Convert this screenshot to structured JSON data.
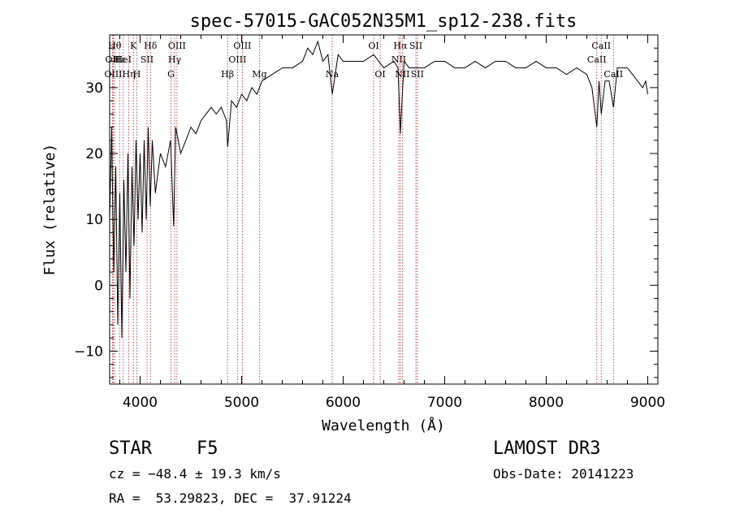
{
  "chart_data": {
    "type": "line",
    "title": "spec-57015-GAC052N35M1_sp12-238.fits",
    "xlabel": "Wavelength (Å)",
    "ylabel": "Flux (relative)",
    "xlim": [
      3700,
      9100
    ],
    "ylim": [
      -15,
      38
    ],
    "xticks": [
      4000,
      5000,
      6000,
      7000,
      8000,
      9000
    ],
    "yticks": [
      -10,
      0,
      10,
      20,
      30
    ],
    "series": [
      {
        "name": "flux",
        "x": [
          3700,
          3720,
          3740,
          3760,
          3780,
          3800,
          3820,
          3840,
          3860,
          3880,
          3900,
          3920,
          3940,
          3960,
          3980,
          4000,
          4020,
          4040,
          4060,
          4080,
          4100,
          4120,
          4150,
          4200,
          4250,
          4300,
          4330,
          4350,
          4400,
          4450,
          4500,
          4550,
          4600,
          4650,
          4700,
          4750,
          4800,
          4850,
          4862,
          4900,
          4950,
          5000,
          5050,
          5100,
          5150,
          5200,
          5300,
          5400,
          5500,
          5600,
          5650,
          5700,
          5750,
          5800,
          5850,
          5893,
          5950,
          6000,
          6100,
          6200,
          6300,
          6400,
          6500,
          6540,
          6563,
          6600,
          6650,
          6700,
          6800,
          6900,
          7000,
          7100,
          7200,
          7300,
          7400,
          7500,
          7600,
          7700,
          7800,
          7900,
          8000,
          8100,
          8200,
          8300,
          8400,
          8450,
          8498,
          8520,
          8542,
          8580,
          8620,
          8662,
          8700,
          8750,
          8800,
          8850,
          8900,
          8950,
          8980,
          9000
        ],
        "y": [
          10,
          24,
          2,
          18,
          -6,
          14,
          -8,
          16,
          2,
          20,
          -2,
          18,
          6,
          22,
          10,
          20,
          8,
          22,
          10,
          24,
          12,
          22,
          14,
          20,
          18,
          22,
          9,
          24,
          20,
          22,
          24,
          23,
          25,
          26,
          27,
          26,
          27,
          25,
          21,
          28,
          27,
          29,
          28,
          30,
          29,
          31,
          32,
          33,
          33,
          34,
          36,
          35,
          37,
          34,
          35,
          29,
          35,
          34,
          34,
          34,
          35,
          33,
          34,
          33,
          23,
          34,
          33,
          33,
          33,
          34,
          34,
          33,
          33,
          34,
          33,
          34,
          34,
          33,
          33,
          34,
          33,
          33,
          32,
          33,
          32,
          30,
          24,
          31,
          26,
          31,
          31,
          27,
          33,
          33,
          33,
          32,
          31,
          30,
          31,
          29
        ]
      }
    ],
    "lines": [
      {
        "wl": 3750,
        "label": "Hθ",
        "row": 1
      },
      {
        "wl": 3727,
        "label": "OII",
        "row": 2
      },
      {
        "wl": 3736,
        "label": "OIII",
        "row": 3
      },
      {
        "wl": 3798,
        "label": "Hε",
        "row": 2
      },
      {
        "wl": 3834,
        "label": "HeI",
        "row": 2
      },
      {
        "wl": 3889,
        "label": "Hη",
        "row": 3
      },
      {
        "wl": 3934,
        "label": "K",
        "row": 1
      },
      {
        "wl": 3968,
        "label": "H",
        "row": 3
      },
      {
        "wl": 4068,
        "label": "SII",
        "row": 2
      },
      {
        "wl": 4102,
        "label": "Hδ",
        "row": 1
      },
      {
        "wl": 4304,
        "label": "G",
        "row": 3
      },
      {
        "wl": 4340,
        "label": "Hγ",
        "row": 2
      },
      {
        "wl": 4363,
        "label": "OIII",
        "row": 1
      },
      {
        "wl": 4861,
        "label": "Hβ",
        "row": 3
      },
      {
        "wl": 4959,
        "label": "OIII",
        "row": 2
      },
      {
        "wl": 5007,
        "label": "OIII",
        "row": 1
      },
      {
        "wl": 5175,
        "label": "Mg",
        "row": 3
      },
      {
        "wl": 5892,
        "label": "Na",
        "row": 3
      },
      {
        "wl": 6300,
        "label": "OI",
        "row": 1
      },
      {
        "wl": 6364,
        "label": "OI",
        "row": 3
      },
      {
        "wl": 6548,
        "label": "NII",
        "row": 2
      },
      {
        "wl": 6563,
        "label": "Hα",
        "row": 1
      },
      {
        "wl": 6583,
        "label": "NII",
        "row": 3
      },
      {
        "wl": 6716,
        "label": "SII",
        "row": 1
      },
      {
        "wl": 6731,
        "label": "SII",
        "row": 3
      },
      {
        "wl": 8498,
        "label": "CaII",
        "row": 2
      },
      {
        "wl": 8542,
        "label": "CaII",
        "row": 1
      },
      {
        "wl": 8662,
        "label": "CaII",
        "row": 3
      }
    ]
  },
  "info": {
    "object_class": "STAR",
    "subclass": "F5",
    "survey": "LAMOST DR3",
    "cz": "cz = −48.4 ± 19.3 km/s",
    "obs_date": "Obs-Date: 20141223",
    "coords": "RA =  53.29823, DEC =  37.91224"
  }
}
